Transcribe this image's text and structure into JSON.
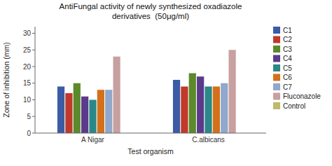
{
  "chart_data": {
    "type": "bar",
    "title": "AntiFungal activity of newly synthesized oxadiazole\nderivatives  (50μg/ml)",
    "xlabel": "Test organism",
    "ylabel": "Zone of inhibition (mm)",
    "categories": [
      "A Nigar",
      "C.albicans"
    ],
    "series": [
      {
        "name": "C1",
        "color": "#3B5BA5",
        "values": [
          14,
          16
        ]
      },
      {
        "name": "C2",
        "color": "#C0392B",
        "values": [
          12,
          14
        ]
      },
      {
        "name": "C3",
        "color": "#5A8A2A",
        "values": [
          15,
          18
        ]
      },
      {
        "name": "C4",
        "color": "#5B3A8C",
        "values": [
          11,
          17
        ]
      },
      {
        "name": "C5",
        "color": "#2A8888",
        "values": [
          10,
          14
        ]
      },
      {
        "name": "C6",
        "color": "#D4701A",
        "values": [
          13,
          14
        ]
      },
      {
        "name": "C7",
        "color": "#8FA8CC",
        "values": [
          13,
          15
        ]
      },
      {
        "name": "Fluconazole",
        "color": "#C8A0A0",
        "values": [
          23,
          25
        ]
      },
      {
        "name": "Control",
        "color": "#BCBC6A",
        "values": [
          null,
          null
        ]
      }
    ],
    "ylim": [
      0,
      32
    ],
    "yticks": [
      0,
      5,
      10,
      15,
      20,
      25,
      30
    ],
    "grid": false,
    "legend": "right"
  }
}
